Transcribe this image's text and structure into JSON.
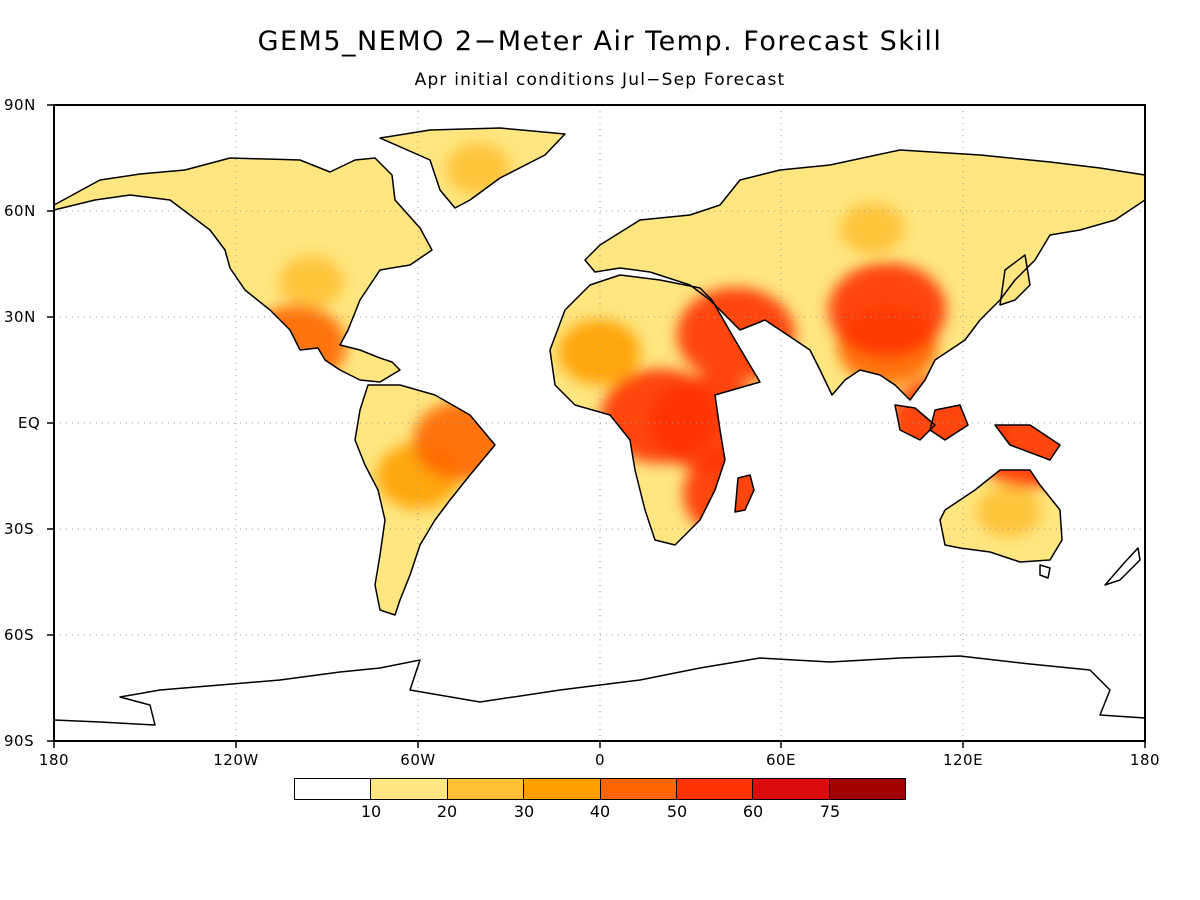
{
  "title": "GEM5_NEMO 2−Meter Air Temp. Forecast Skill",
  "subtitle": "Apr initial conditions   Jul−Sep Forecast",
  "map": {
    "lat_labels": [
      "90N",
      "60N",
      "30N",
      "EQ",
      "30S",
      "60S",
      "90S"
    ],
    "lon_labels": [
      "180",
      "120W",
      "60W",
      "0",
      "60E",
      "120E",
      "180"
    ],
    "grid": "dotted"
  },
  "colorbar": {
    "colors": [
      "#ffffff",
      "#ffe680",
      "#ffc033",
      "#ffa000",
      "#ff6600",
      "#ff3300",
      "#dc0c0c",
      "#a00000"
    ],
    "labels": [
      "10",
      "20",
      "30",
      "40",
      "50",
      "60",
      "75"
    ]
  },
  "chart_data": {
    "type": "heatmap",
    "variable": "2-Meter Air Temp. Forecast Skill",
    "xlim": [
      -180,
      180
    ],
    "ylim": [
      -90,
      90
    ],
    "bins": [
      10,
      20,
      30,
      40,
      50,
      60,
      75
    ],
    "regions": [
      {
        "lon": 95,
        "lat": 32,
        "level": 50
      },
      {
        "lon": 95,
        "lat": 22,
        "level": 40
      },
      {
        "lon": 45,
        "lat": 25,
        "level": 50
      },
      {
        "lon": 20,
        "lat": 2,
        "level": 50
      },
      {
        "lon": 36,
        "lat": 0,
        "level": 50
      },
      {
        "lon": 47,
        "lat": -20,
        "level": 50
      },
      {
        "lon": 115,
        "lat": 0,
        "level": 50
      },
      {
        "lon": 142,
        "lat": -5,
        "level": 50
      },
      {
        "lon": -100,
        "lat": 22,
        "level": 40
      },
      {
        "lon": -45,
        "lat": -5,
        "level": 40
      },
      {
        "lon": -60,
        "lat": -15,
        "level": 30
      },
      {
        "lon": 0,
        "lat": 20,
        "level": 30
      },
      {
        "lon": 90,
        "lat": 55,
        "level": 20
      },
      {
        "lon": 135,
        "lat": -25,
        "level": 20
      },
      {
        "lon": -40,
        "lat": 72,
        "level": 20
      },
      {
        "lon": -95,
        "lat": 40,
        "level": 20
      }
    ]
  }
}
